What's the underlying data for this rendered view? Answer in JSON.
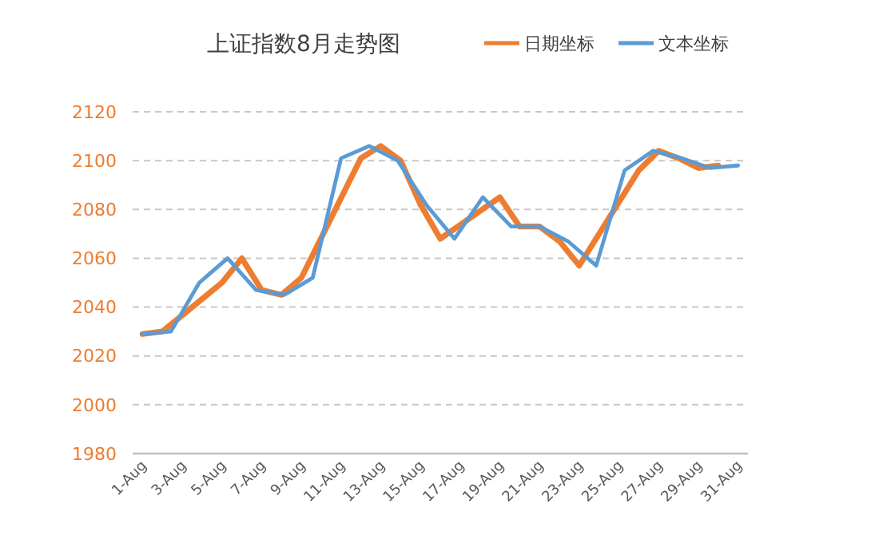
{
  "chart_data": {
    "type": "line",
    "title": "上证指数8月走势图",
    "legend": "top right",
    "grid": "y",
    "line_style": "solid",
    "marker": "none",
    "xlim": [
      "--07-31T12:00",
      "--08-31T12:00"
    ],
    "xticks": [
      {
        "value": "--08-01",
        "label": "1-Aug"
      },
      {
        "value": "--08-03",
        "label": "3-Aug"
      },
      {
        "value": "--08-05",
        "label": "5-Aug"
      },
      {
        "value": "--08-07",
        "label": "7-Aug"
      },
      {
        "value": "--08-09",
        "label": "9-Aug"
      },
      {
        "value": "--08-11",
        "label": "11-Aug"
      },
      {
        "value": "--08-13",
        "label": "13-Aug"
      },
      {
        "value": "--08-15",
        "label": "15-Aug"
      },
      {
        "value": "--08-17",
        "label": "17-Aug"
      },
      {
        "value": "--08-19",
        "label": "19-Aug"
      },
      {
        "value": "--08-21",
        "label": "21-Aug"
      },
      {
        "value": "--08-23",
        "label": "23-Aug"
      },
      {
        "value": "--08-25",
        "label": "25-Aug"
      },
      {
        "value": "--08-27",
        "label": "27-Aug"
      },
      {
        "value": "--08-29",
        "label": "29-Aug"
      },
      {
        "value": "--08-31",
        "label": "31-Aug"
      }
    ],
    "ylim": [
      1980,
      2120
    ],
    "yticks": [
      1980,
      2000,
      2020,
      2040,
      2060,
      2080,
      2100,
      2120
    ],
    "series": [
      {
        "name": "日期坐标",
        "color": "#ed7d31",
        "x": [
          "--08-01",
          "--08-02",
          "--08-05",
          "--08-06",
          "--08-07",
          "--08-08",
          "--08-09",
          "--08-12",
          "--08-13",
          "--08-14",
          "--08-15",
          "--08-16",
          "--08-19",
          "--08-20",
          "--08-21",
          "--08-22",
          "--08-23",
          "--08-26",
          "--08-27",
          "--08-28",
          "--08-29",
          "--08-30"
        ],
        "values": [
          2029,
          2030,
          2050,
          2060,
          2047,
          2045,
          2052,
          2101,
          2106,
          2100,
          2082,
          2068,
          2085,
          2073,
          2073,
          2067,
          2057,
          2096,
          2104,
          2101,
          2097,
          2098
        ]
      },
      {
        "name": "文本坐标",
        "color": "#5b9bd5",
        "x": [
          "--08-01T00:00",
          "--08-02T10:17",
          "--08-03T20:34",
          "--08-05T06:51",
          "--08-06T17:09",
          "--08-08T03:26",
          "--08-09T13:43",
          "--08-11T00:00",
          "--08-12T10:17",
          "--08-13T20:34",
          "--08-15T06:51",
          "--08-16T17:09",
          "--08-18T03:26",
          "--08-19T13:43",
          "--08-21T00:00",
          "--08-22T10:17",
          "--08-23T20:34",
          "--08-25T06:51",
          "--08-26T17:09",
          "--08-28T03:26",
          "--08-29T13:43",
          "--08-31T00:00"
        ],
        "values": [
          2029,
          2030,
          2050,
          2060,
          2047,
          2045,
          2052,
          2101,
          2106,
          2100,
          2082,
          2068,
          2085,
          2073,
          2073,
          2067,
          2057,
          2096,
          2104,
          2101,
          2097,
          2098
        ]
      }
    ]
  }
}
